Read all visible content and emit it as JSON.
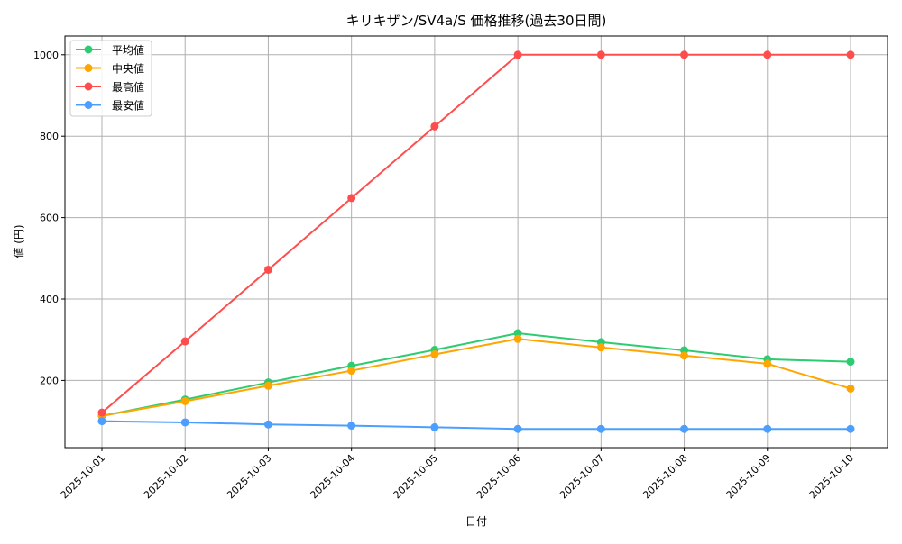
{
  "chart_data": {
    "type": "line",
    "title": "キリキザン/SV4a/S 価格推移(過去30日間)",
    "xlabel": "日付",
    "ylabel": "値 (円)",
    "x": [
      "2025-10-01",
      "2025-10-02",
      "2025-10-03",
      "2025-10-04",
      "2025-10-05",
      "2025-10-06",
      "2025-10-07",
      "2025-10-08",
      "2025-10-09",
      "2025-10-10"
    ],
    "ylim": [
      35,
      1046
    ],
    "yticks": [
      200,
      400,
      600,
      800,
      1000
    ],
    "grid": true,
    "legend_position": "top-left",
    "series": [
      {
        "name": "平均値",
        "color": "#2ecc71",
        "values": [
          113,
          153,
          195,
          236,
          275,
          316,
          294,
          274,
          252,
          246
        ]
      },
      {
        "name": "中央値",
        "color": "#ffa500",
        "values": [
          113,
          149,
          187,
          224,
          264,
          302,
          281,
          261,
          241,
          180
        ]
      },
      {
        "name": "最高値",
        "color": "#ff4d4d",
        "values": [
          121,
          296,
          472,
          648,
          824,
          1000,
          1000,
          1000,
          1000,
          1000
        ]
      },
      {
        "name": "最安値",
        "color": "#4d9fff",
        "values": [
          100,
          97,
          92,
          89,
          85,
          81,
          81,
          81,
          81,
          81
        ]
      }
    ]
  }
}
